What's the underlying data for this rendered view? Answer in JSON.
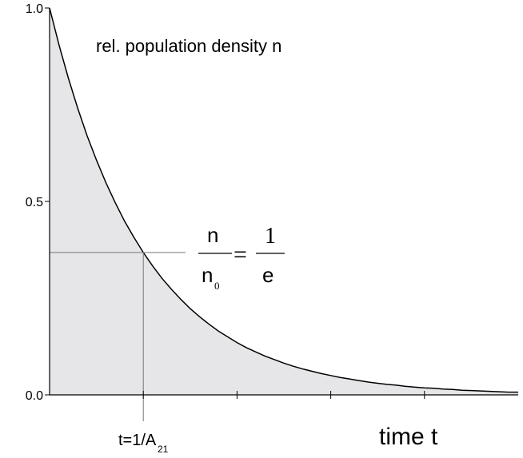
{
  "chart_data": {
    "type": "line",
    "y_label": "rel. population density n",
    "x_label": "time t",
    "x": [
      0,
      0.1,
      0.2,
      0.3,
      0.4,
      0.5,
      0.6,
      0.7,
      0.8,
      0.9,
      1,
      1.1,
      1.2,
      1.3,
      1.4,
      1.5,
      1.6,
      1.7,
      1.8,
      1.9,
      2,
      2.1,
      2.2,
      2.3,
      2.4,
      2.5,
      2.6,
      2.7,
      2.8,
      2.9,
      3,
      3.1,
      3.2,
      3.3,
      3.4,
      3.5,
      3.6,
      3.7,
      3.8,
      3.9,
      4,
      4.1,
      4.2,
      4.3,
      4.4,
      4.5,
      4.6,
      4.7,
      4.8,
      4.9,
      5
    ],
    "series": [
      {
        "color": "#000000",
        "fill": "#e6e6e9",
        "values": [
          1.0,
          0.905,
          0.819,
          0.741,
          0.67,
          0.607,
          0.549,
          0.497,
          0.449,
          0.407,
          0.368,
          0.333,
          0.301,
          0.273,
          0.247,
          0.223,
          0.202,
          0.183,
          0.165,
          0.15,
          0.135,
          0.122,
          0.111,
          0.1,
          0.091,
          0.082,
          0.074,
          0.067,
          0.061,
          0.055,
          0.05,
          0.045,
          0.041,
          0.037,
          0.033,
          0.03,
          0.027,
          0.025,
          0.022,
          0.02,
          0.018,
          0.017,
          0.015,
          0.014,
          0.012,
          0.011,
          0.01,
          0.009,
          0.008,
          0.007,
          0.007
        ]
      }
    ],
    "xlim": [
      0,
      5
    ],
    "ylim": [
      0,
      1
    ],
    "xticks": [
      1,
      2,
      3,
      4
    ],
    "yticks": [
      {
        "value": 0,
        "label": "0.0"
      },
      {
        "value": 0.5,
        "label": "0.5"
      },
      {
        "value": 1,
        "label": "1.0"
      }
    ],
    "marker": {
      "x": 1,
      "y": 0.368,
      "color": "#777777",
      "label": "t=1/A",
      "label_sub": "21"
    },
    "equation": {
      "numerator": "n",
      "denominator": "n",
      "denominator_sub": "0",
      "equals": "=",
      "rhs_numerator": "1",
      "rhs_denominator": "e"
    }
  }
}
